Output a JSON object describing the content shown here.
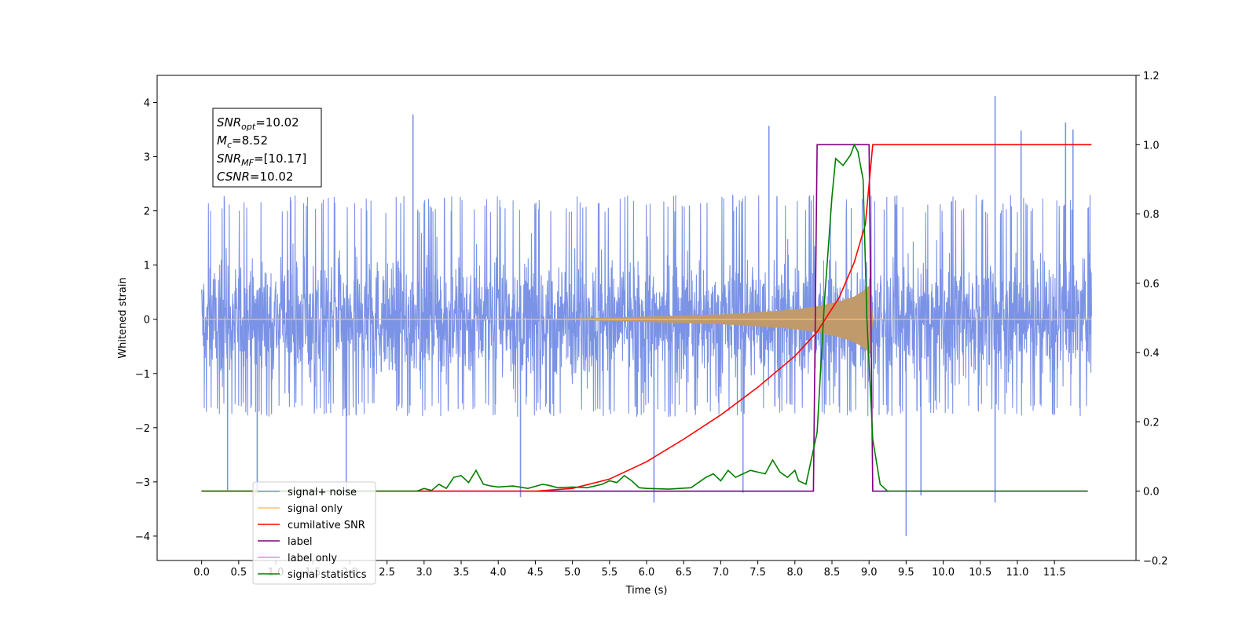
{
  "chart_data": {
    "type": "line",
    "xlabel": "Time (s)",
    "ylabel": "Whitened strain",
    "xlim": [
      -0.6,
      12.6
    ],
    "ylim": [
      -4.45,
      4.5
    ],
    "y2lim": [
      -0.2,
      1.2
    ],
    "grid": false,
    "legend_position": "lower-left",
    "xticks": [
      0.0,
      0.5,
      1.0,
      1.5,
      2.0,
      2.5,
      3.0,
      3.5,
      4.0,
      4.5,
      5.0,
      5.5,
      6.0,
      6.5,
      7.0,
      7.5,
      8.0,
      8.5,
      9.0,
      9.5,
      10.0,
      10.5,
      11.0,
      11.5
    ],
    "xtick_labels": [
      "0.0",
      "0.5",
      "1.0",
      "1.5",
      "2.0",
      "2.5",
      "3.0",
      "3.5",
      "4.0",
      "4.5",
      "5.0",
      "5.5",
      "6.0",
      "6.5",
      "7.0",
      "7.5",
      "8.0",
      "8.5",
      "9.0",
      "9.5",
      "10.0",
      "10.5",
      "11.0",
      "11.5"
    ],
    "yticks": [
      -4,
      -3,
      -2,
      -1,
      0,
      1,
      2,
      3,
      4
    ],
    "ytick_labels": [
      "−4",
      "−3",
      "−2",
      "−1",
      "0",
      "1",
      "2",
      "3",
      "4"
    ],
    "y2ticks": [
      -0.2,
      0.0,
      0.2,
      0.4,
      0.6,
      0.8,
      1.0,
      1.2
    ],
    "y2tick_labels": [
      "−0.2",
      "0.0",
      "0.2",
      "0.4",
      "0.6",
      "0.8",
      "1.0",
      "1.2"
    ],
    "annotation": [
      {
        "main": "SNR",
        "sub": "opt",
        "rest": "=10.02"
      },
      {
        "main": "M",
        "sub": "c",
        "rest": "=8.52"
      },
      {
        "main": "SNR",
        "sub": "MF",
        "rest": "=[10.17]"
      },
      {
        "main": "CSNR",
        "sub": "",
        "rest": "=10.02"
      }
    ],
    "colors": {
      "signal_noise": "#7b93e6",
      "signal_only": "#f5c26b",
      "signal_envelope": "#c19a6b",
      "cumulative_snr": "#ff0000",
      "label": "#800080",
      "label_only": "#ee82ee",
      "signal_statistics": "#008000"
    },
    "series": [
      {
        "name": "signal+ noise",
        "axis": "left",
        "x_range": [
          0.0,
          12.0
        ],
        "typical_range": [
          -1.8,
          2.3
        ],
        "extremes": [
          {
            "x": 0.35,
            "y": -3.15
          },
          {
            "x": 0.75,
            "y": -3.2
          },
          {
            "x": 1.95,
            "y": -3.2
          },
          {
            "x": 2.85,
            "y": 3.78
          },
          {
            "x": 4.3,
            "y": -3.28
          },
          {
            "x": 6.1,
            "y": -3.38
          },
          {
            "x": 7.3,
            "y": -3.2
          },
          {
            "x": 7.65,
            "y": 3.57
          },
          {
            "x": 9.5,
            "y": -4.0
          },
          {
            "x": 9.7,
            "y": -3.25
          },
          {
            "x": 10.7,
            "y": 4.12
          },
          {
            "x": 10.7,
            "y": -3.38
          },
          {
            "x": 11.05,
            "y": 3.48
          },
          {
            "x": 11.65,
            "y": 3.63
          },
          {
            "x": 11.75,
            "y": 3.5
          }
        ]
      },
      {
        "name": "signal only",
        "axis": "left",
        "envelope": {
          "x": [
            0.0,
            4.5,
            5.0,
            5.5,
            6.0,
            6.5,
            7.0,
            7.5,
            8.0,
            8.3,
            8.6,
            8.8,
            8.95,
            9.02,
            9.05,
            12.0
          ],
          "amp": [
            0.0,
            0.0,
            0.015,
            0.03,
            0.05,
            0.07,
            0.09,
            0.13,
            0.18,
            0.24,
            0.33,
            0.42,
            0.55,
            0.65,
            0.0,
            0.0
          ]
        }
      },
      {
        "name": "cumilative SNR",
        "axis": "right",
        "x": [
          0.0,
          4.5,
          5.0,
          5.5,
          6.0,
          6.5,
          7.0,
          7.5,
          8.0,
          8.3,
          8.6,
          8.8,
          8.95,
          9.05,
          9.15,
          12.0
        ],
        "y": [
          0.0,
          0.0,
          0.008,
          0.035,
          0.085,
          0.15,
          0.22,
          0.3,
          0.39,
          0.46,
          0.56,
          0.66,
          0.77,
          1.0,
          1.0,
          1.0
        ]
      },
      {
        "name": "label",
        "axis": "right",
        "x": [
          0.0,
          8.25,
          8.3,
          9.0,
          9.05,
          11.95
        ],
        "y": [
          0.0,
          0.0,
          1.0,
          1.0,
          0.0,
          0.0
        ]
      },
      {
        "name": "label only",
        "axis": "right",
        "x": [],
        "y": []
      },
      {
        "name": "signal statistics",
        "axis": "right",
        "x": [
          0.0,
          2.9,
          3.0,
          3.1,
          3.2,
          3.3,
          3.4,
          3.5,
          3.6,
          3.7,
          3.8,
          3.9,
          4.0,
          4.2,
          4.4,
          4.6,
          4.7,
          4.8,
          5.0,
          5.2,
          5.4,
          5.5,
          5.6,
          5.7,
          5.8,
          5.9,
          6.0,
          6.3,
          6.6,
          6.8,
          6.9,
          7.0,
          7.1,
          7.2,
          7.3,
          7.4,
          7.6,
          7.7,
          7.8,
          7.9,
          8.0,
          8.05,
          8.15,
          8.3,
          8.4,
          8.5,
          8.55,
          8.65,
          8.75,
          8.8,
          8.85,
          8.92,
          8.97,
          9.05,
          9.15,
          9.25,
          11.95
        ],
        "y": [
          0.0,
          0.0,
          0.008,
          0.002,
          0.02,
          0.008,
          0.04,
          0.045,
          0.025,
          0.06,
          0.02,
          0.015,
          0.012,
          0.015,
          0.008,
          0.02,
          0.016,
          0.01,
          0.012,
          0.01,
          0.02,
          0.03,
          0.025,
          0.045,
          0.03,
          0.01,
          0.008,
          0.006,
          0.01,
          0.04,
          0.05,
          0.03,
          0.06,
          0.04,
          0.05,
          0.06,
          0.05,
          0.09,
          0.055,
          0.04,
          0.06,
          0.03,
          0.02,
          0.17,
          0.55,
          0.85,
          0.96,
          0.94,
          0.97,
          1.0,
          0.98,
          0.9,
          0.5,
          0.15,
          0.02,
          0.0,
          0.0
        ]
      }
    ],
    "legend": [
      "signal+ noise",
      "signal only",
      "cumilative SNR",
      "label",
      "label only",
      "signal statistics"
    ]
  }
}
